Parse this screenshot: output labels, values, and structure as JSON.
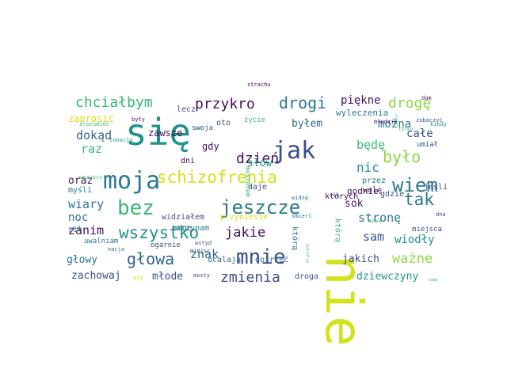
{
  "cloud": {
    "palette": {
      "purple": "#44105a",
      "indigo": "#3b4f8a",
      "blue": "#32658e",
      "teal": "#2a788e",
      "cyan": "#1f928c",
      "green": "#3bb873",
      "lime": "#8fd744",
      "yellow": "#d2e21b"
    },
    "words": [
      {
        "text": "nie",
        "size": 64,
        "color": "#d2e21b",
        "rot": 90
      },
      {
        "text": "się",
        "size": 46,
        "color": "#1f928c"
      },
      {
        "text": "moja",
        "size": 30,
        "color": "#2a788e"
      },
      {
        "text": "jak",
        "size": 30,
        "color": "#3b4f8a"
      },
      {
        "text": "mnie",
        "size": 26,
        "color": "#3b4f8a"
      },
      {
        "text": "bez",
        "size": 26,
        "color": "#3bb873"
      },
      {
        "text": "wiem",
        "size": 24,
        "color": "#2a788e"
      },
      {
        "text": "jeszcze",
        "size": 24,
        "color": "#2a788e"
      },
      {
        "text": "schizofrenia",
        "size": 21,
        "color": "#d2e21b"
      },
      {
        "text": "wszystko",
        "size": 21,
        "color": "#1f928c"
      },
      {
        "text": "tak",
        "size": 21,
        "color": "#2a788e"
      },
      {
        "text": "głowa",
        "size": 20,
        "color": "#32658e"
      },
      {
        "text": "drogi",
        "size": 20,
        "color": "#2a788e"
      },
      {
        "text": "było",
        "size": 20,
        "color": "#8fd744"
      },
      {
        "text": "zmienia",
        "size": 18,
        "color": "#3b4f8a"
      },
      {
        "text": "chciałbym",
        "size": 18,
        "color": "#3bb873"
      },
      {
        "text": "przykro",
        "size": 18,
        "color": "#44105a"
      },
      {
        "text": "drogę",
        "size": 18,
        "color": "#8fd744"
      },
      {
        "text": "dzień",
        "size": 18,
        "color": "#44105a"
      },
      {
        "text": "jakie",
        "size": 17,
        "color": "#44105a"
      },
      {
        "text": "ważne",
        "size": 17,
        "color": "#8fd744"
      },
      {
        "text": "nic",
        "size": 16,
        "color": "#1f928c"
      },
      {
        "text": "będę",
        "size": 15,
        "color": "#3bb873"
      },
      {
        "text": "znak",
        "size": 15,
        "color": "#32658e"
      },
      {
        "text": "wiary",
        "size": 15,
        "color": "#2a788e"
      },
      {
        "text": "stronę",
        "size": 15,
        "color": "#2a788e"
      },
      {
        "text": "raz",
        "size": 15,
        "color": "#3bb873"
      },
      {
        "text": "dokąd",
        "size": 15,
        "color": "#32658e"
      },
      {
        "text": "zanim",
        "size": 15,
        "color": "#44105a"
      },
      {
        "text": "sam",
        "size": 15,
        "color": "#3b4f8a"
      },
      {
        "text": "noc",
        "size": 14,
        "color": "#2a788e"
      },
      {
        "text": "całe",
        "size": 14,
        "color": "#3b4f8a"
      },
      {
        "text": "można",
        "size": 14,
        "color": "#2a788e"
      },
      {
        "text": "piękne",
        "size": 14,
        "color": "#44105a"
      },
      {
        "text": "wiodły",
        "size": 14,
        "color": "#1f928c"
      },
      {
        "text": "młode",
        "size": 13,
        "color": "#3b4f8a"
      },
      {
        "text": "sok",
        "size": 13,
        "color": "#44105a"
      },
      {
        "text": "słów",
        "size": 13,
        "color": "#1f928c"
      },
      {
        "text": "byłem",
        "size": 13,
        "color": "#32658e"
      },
      {
        "text": "oraz",
        "size": 13,
        "color": "#44105a"
      },
      {
        "text": "głowy",
        "size": 13,
        "color": "#2a788e"
      },
      {
        "text": "zachowaj",
        "size": 13,
        "color": "#3b4f8a"
      },
      {
        "text": "dziewczyny",
        "size": 13,
        "color": "#1f928c"
      },
      {
        "text": "jakich",
        "size": 13,
        "color": "#3b4f8a"
      },
      {
        "text": "zawsze",
        "size": 12,
        "color": "#44105a"
      },
      {
        "text": "gdy",
        "size": 12,
        "color": "#44105a"
      },
      {
        "text": "zaprosić",
        "size": 12,
        "color": "#d2e21b"
      },
      {
        "text": "godnie",
        "size": 11,
        "color": "#44105a"
      },
      {
        "text": "wyleczenia",
        "size": 11,
        "color": "#2a788e"
      },
      {
        "text": "ocalają",
        "size": 10,
        "color": "#32658e"
      },
      {
        "text": "dotrzeć",
        "size": 10,
        "color": "#32658e"
      },
      {
        "text": "droga",
        "size": 10,
        "color": "#3b4f8a"
      },
      {
        "text": "widziałem",
        "size": 10,
        "color": "#3b4f8a"
      },
      {
        "text": "przyniesie",
        "size": 10,
        "color": "#d2e21b"
      },
      {
        "text": "zaczynam",
        "size": 10,
        "color": "#2a788e"
      },
      {
        "text": "dni",
        "size": 10,
        "color": "#44105a"
      },
      {
        "text": "daje",
        "size": 10,
        "color": "#3b4f8a"
      },
      {
        "text": "oto",
        "size": 10,
        "color": "#3b4f8a"
      },
      {
        "text": "lecz",
        "size": 10,
        "color": "#3b4f8a"
      },
      {
        "text": "którą",
        "size": 10,
        "color": "#2a788e",
        "rot": 90
      },
      {
        "text": "którą",
        "size": 10,
        "color": "#3bb873",
        "rot": 90
      },
      {
        "text": "których",
        "size": 10,
        "color": "#44105a"
      },
      {
        "text": "przez",
        "size": 10,
        "color": "#2a788e"
      },
      {
        "text": "wolę",
        "size": 10,
        "color": "#44105a"
      },
      {
        "text": "gdzie",
        "size": 10,
        "color": "#3b4f8a"
      },
      {
        "text": "jeśli",
        "size": 10,
        "color": "#3b4f8a"
      },
      {
        "text": "myśli",
        "size": 10,
        "color": "#2a788e"
      },
      {
        "text": "sił",
        "size": 10,
        "color": "#2a788e"
      },
      {
        "text": "moge",
        "size": 10,
        "color": "#2a788e"
      },
      {
        "text": "ogarnie",
        "size": 9,
        "color": "#3b4f8a"
      },
      {
        "text": "życie",
        "size": 9,
        "color": "#3bb873"
      },
      {
        "text": "swoja",
        "size": 9,
        "color": "#3b4f8a"
      },
      {
        "text": "uwalniam",
        "size": 9,
        "color": "#2a788e"
      },
      {
        "text": "umiał",
        "size": 9,
        "color": "#3b4f8a"
      },
      {
        "text": "miejsca",
        "size": 9,
        "color": "#3b4f8a"
      },
      {
        "text": "musiałem",
        "size": 8,
        "color": "#3bb873",
        "rot": 90
      },
      {
        "text": "strachu",
        "size": 7,
        "color": "#44105a"
      },
      {
        "text": "dom",
        "size": 7,
        "color": "#44105a"
      },
      {
        "text": "były",
        "size": 7,
        "color": "#44105a"
      },
      {
        "text": "zrozumieć",
        "size": 7,
        "color": "#3bb873"
      },
      {
        "text": "młodzie",
        "size": 7,
        "color": "#44105a"
      },
      {
        "text": "zobaczyć",
        "size": 7,
        "color": "#3b4f8a"
      },
      {
        "text": "kiedy",
        "size": 7,
        "color": "#1f928c"
      },
      {
        "text": "tonacja",
        "size": 7,
        "color": "#1f928c"
      },
      {
        "text": "wszyscy",
        "size": 7,
        "color": "#3bb873"
      },
      {
        "text": "widzę",
        "size": 7,
        "color": "#2a788e"
      },
      {
        "text": "śmierć",
        "size": 7,
        "color": "#2a788e"
      },
      {
        "text": "ile",
        "size": 7,
        "color": "#3b4f8a"
      },
      {
        "text": "nową",
        "size": 7,
        "color": "#3bb873"
      },
      {
        "text": "dna",
        "size": 7,
        "color": "#3b4f8a"
      },
      {
        "text": "nacja",
        "size": 7,
        "color": "#2a788e"
      },
      {
        "text": "wstyd",
        "size": 7,
        "color": "#3b4f8a"
      },
      {
        "text": "miejsc",
        "size": 7,
        "color": "#3b4f8a"
      },
      {
        "text": "mosty",
        "size": 7,
        "color": "#3b4f8a"
      },
      {
        "text": "psy",
        "size": 7,
        "color": "#d2e21b"
      },
      {
        "text": "tylko",
        "size": 6,
        "color": "#3bb873"
      },
      {
        "text": "chwili",
        "size": 5,
        "color": "#3bb873",
        "rot": 90
      },
      {
        "text": "potrafię",
        "size": 5,
        "color": "#3bb873",
        "rot": 90
      },
      {
        "text": "źle",
        "size": 5,
        "color": "#3bb873"
      },
      {
        "text": "rada",
        "size": 5,
        "color": "#3bb873"
      }
    ]
  }
}
